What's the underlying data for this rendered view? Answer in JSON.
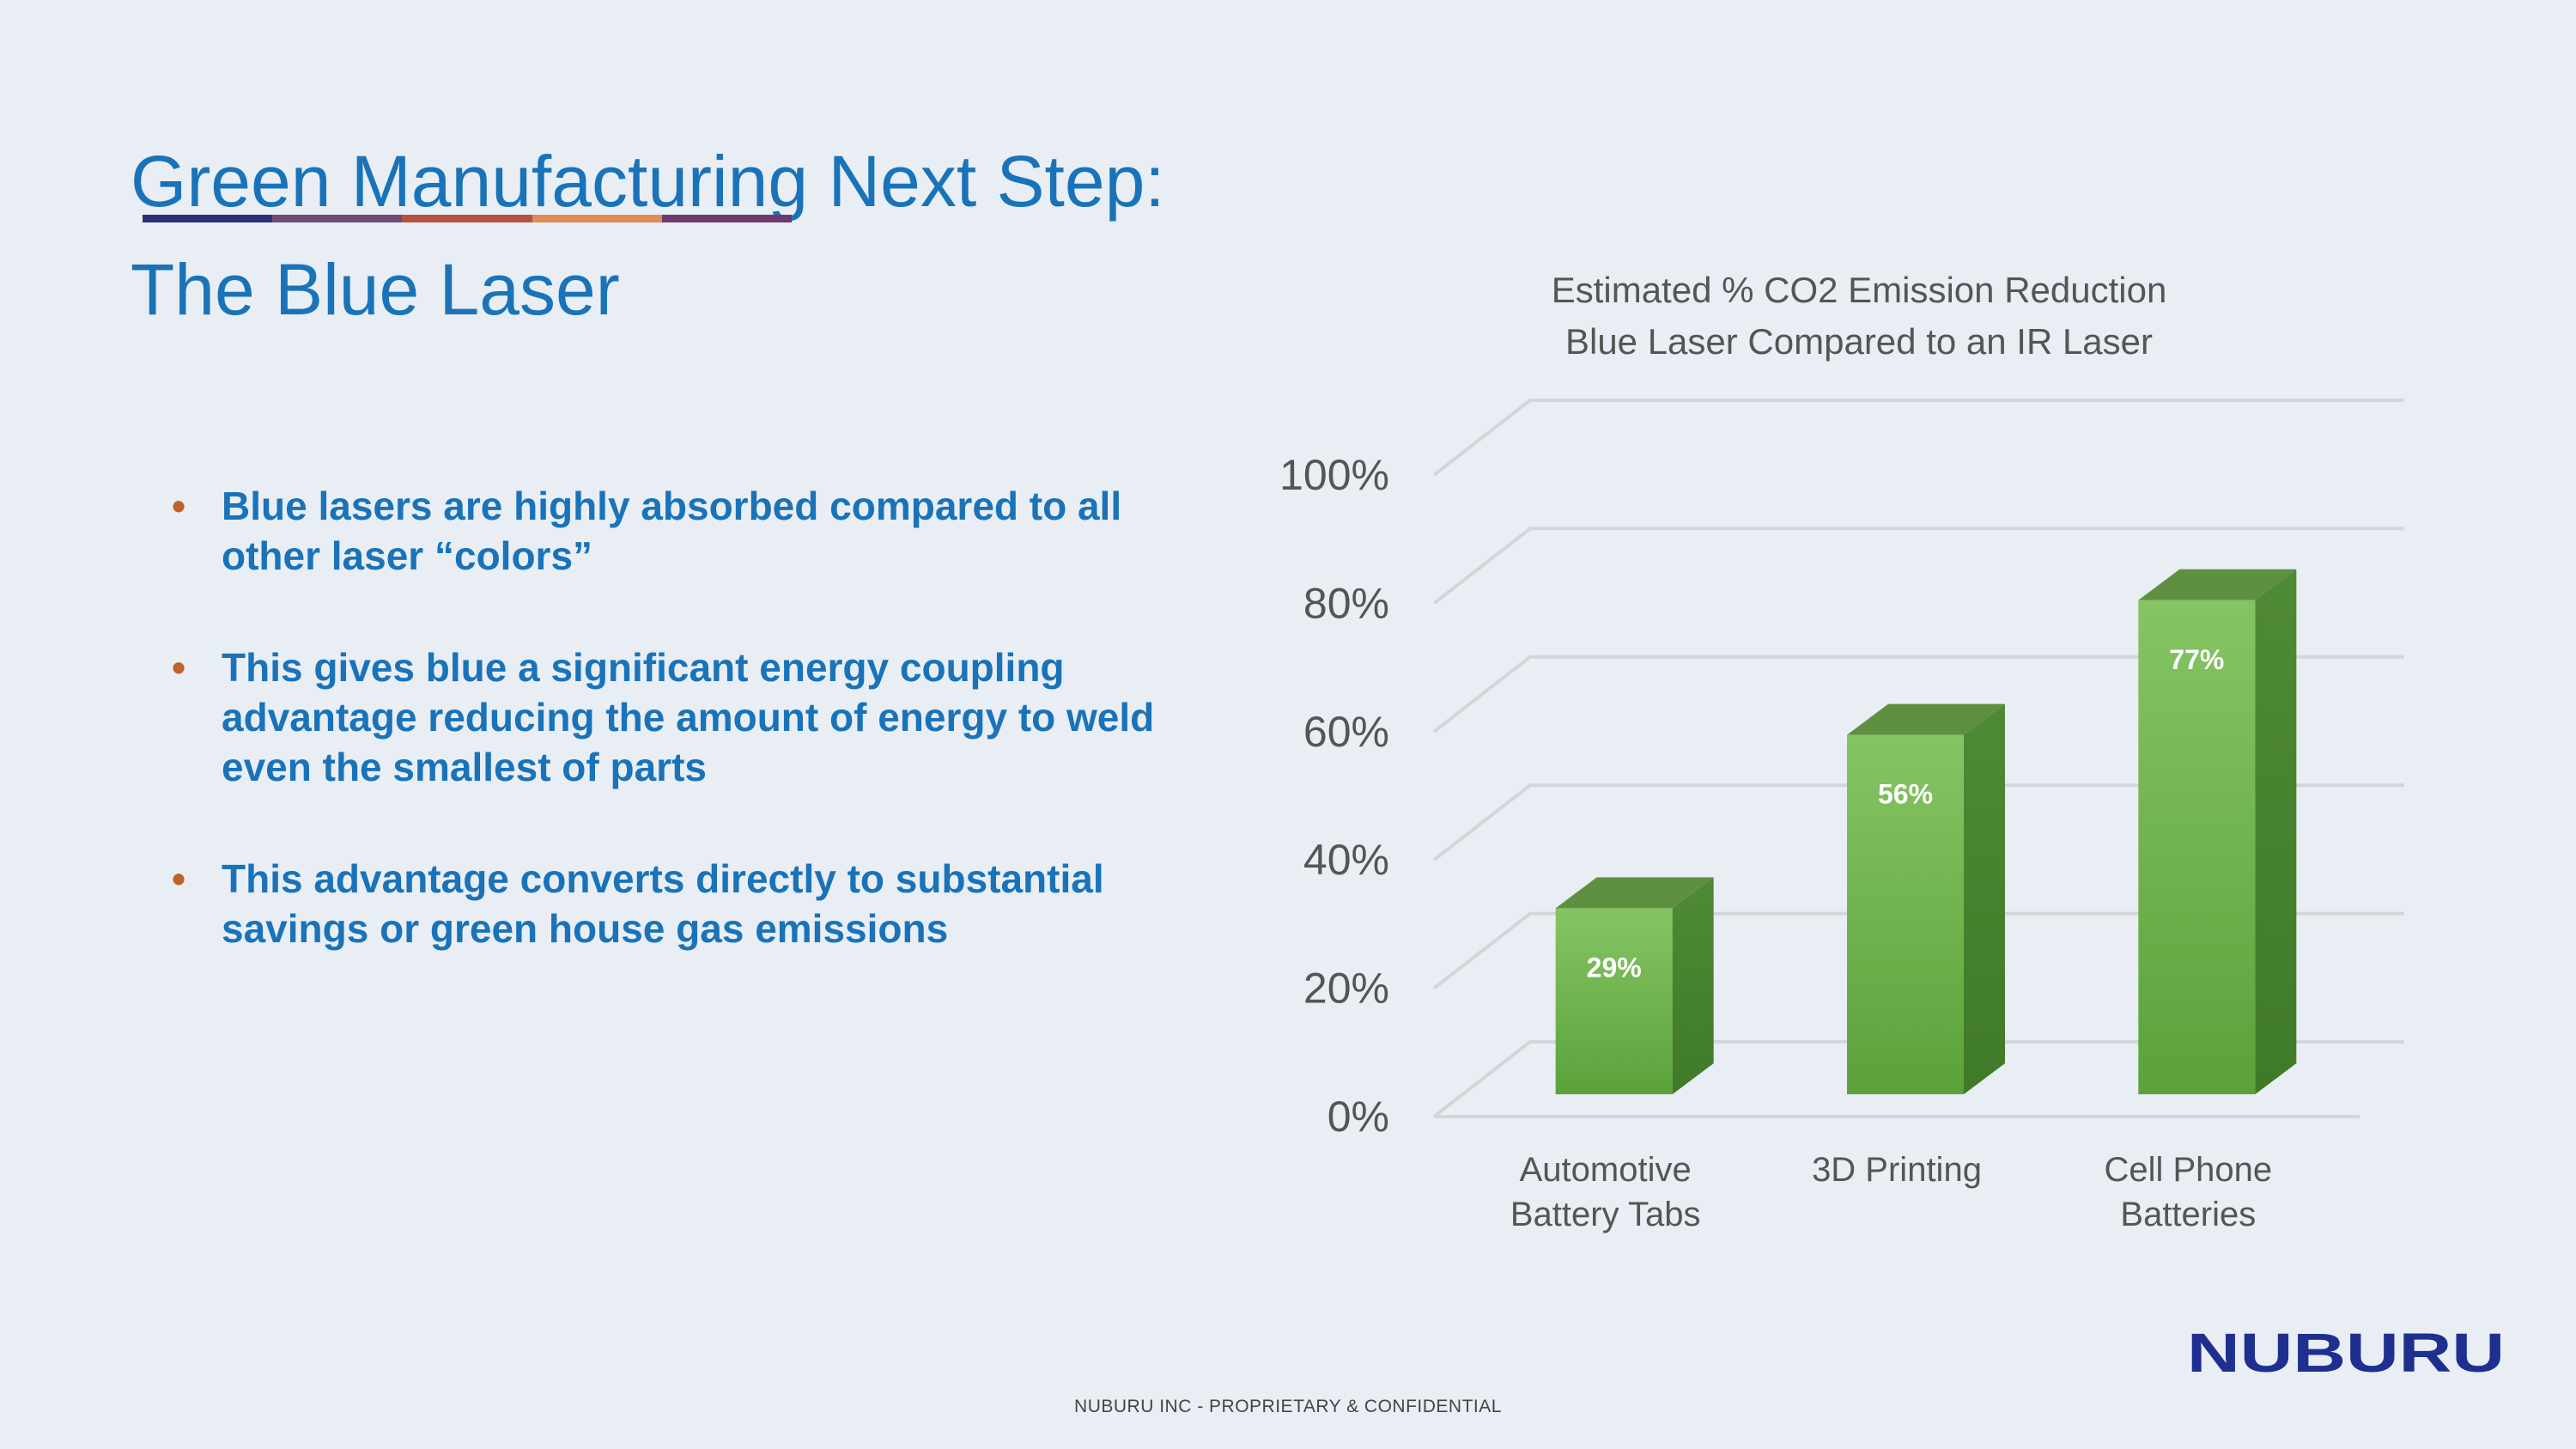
{
  "slide": {
    "title_line1": "Green Manufacturing Next Step:",
    "title_line2": "The Blue Laser",
    "rule_colors": [
      "#2b2f7a",
      "#6e4a78",
      "#b5533c",
      "#e08a55",
      "#6e3a6a"
    ],
    "text_color": "#1a73b8",
    "bullet_color": "#c0622a",
    "bullets": [
      "Blue lasers are highly absorbed compared to all other laser “colors”",
      "This gives blue a significant energy coupling advantage reducing the amount of energy to weld even the smallest of parts",
      "This advantage converts directly to substantial savings or green house gas emissions"
    ]
  },
  "chart_data": {
    "type": "bar",
    "style": "3d-column",
    "title_lines": [
      "Estimated % CO2 Emission Reduction",
      "Blue Laser Compared to an IR Laser"
    ],
    "categories": [
      [
        "Automotive",
        "Battery Tabs"
      ],
      [
        "3D Printing"
      ],
      [
        "Cell Phone",
        "Batteries"
      ]
    ],
    "values": [
      29,
      56,
      77
    ],
    "value_labels": [
      "29%",
      "56%",
      "77%"
    ],
    "ylim": [
      0,
      100
    ],
    "yticks": [
      0,
      20,
      40,
      60,
      80,
      100
    ],
    "ytick_labels": [
      "0%",
      "20%",
      "40%",
      "60%",
      "80%",
      "100%"
    ],
    "grid": true,
    "legend": "none",
    "colors": {
      "bar_front_top": "#86c463",
      "bar_front_bottom": "#5ba23b",
      "bar_side": "#3f7a28",
      "bar_top": "#5f8f40",
      "grid": "#d3d6d9",
      "label": "#555555"
    }
  },
  "footer": {
    "text": "NUBURU INC - PROPRIETARY & CONFIDENTIAL"
  },
  "logo": {
    "text": "NUBURU",
    "color": "#1f2f8f"
  }
}
